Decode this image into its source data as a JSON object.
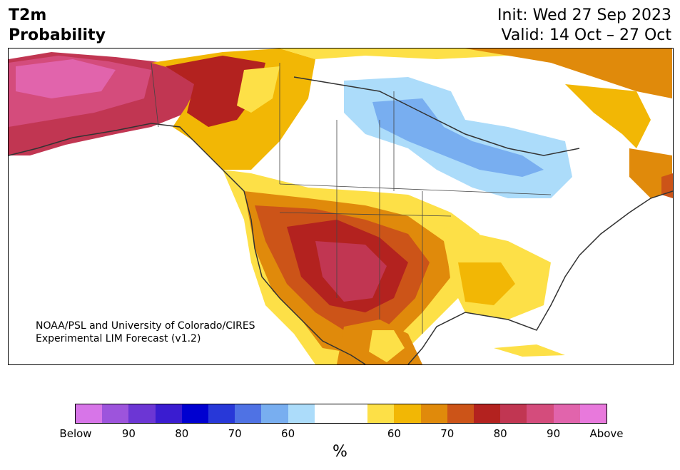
{
  "header": {
    "title_line1": "T2m",
    "title_line2": "Probability",
    "init": "Init: Wed 27 Sep 2023",
    "valid": "Valid: 14 Oct – 27 Oct"
  },
  "map": {
    "credit_line1": "NOAA/PSL and University of Colorado/CIRES",
    "credit_line2": "Experimental LIM Forecast (v1.2)"
  },
  "colorbar": {
    "colors": [
      "#d775e8",
      "#9d54dc",
      "#6c36d4",
      "#3a1cd0",
      "#0000d0",
      "#2838d8",
      "#4f72e4",
      "#78aef0",
      "#acdcfa",
      "#ffffff",
      "#ffffff",
      "#fde047",
      "#f2b705",
      "#e08a0b",
      "#cc5418",
      "#b3221f",
      "#c13652",
      "#d44c7c",
      "#e164ac",
      "#e879dc"
    ],
    "tick_labels": [
      "Below",
      "90",
      "80",
      "70",
      "60",
      "60",
      "70",
      "80",
      "90",
      "Above"
    ],
    "unit": "%"
  },
  "legend_colors": {
    "white": "#ffffff",
    "yellow": "#fde047",
    "gold": "#f2b705",
    "orange": "#e08a0b",
    "burnt_orange": "#cc5418",
    "red": "#b3221f",
    "crimson": "#c13652",
    "rose": "#d44c7c",
    "pink": "#e164ac",
    "light_blue": "#acdcfa",
    "mid_blue": "#78aef0"
  }
}
